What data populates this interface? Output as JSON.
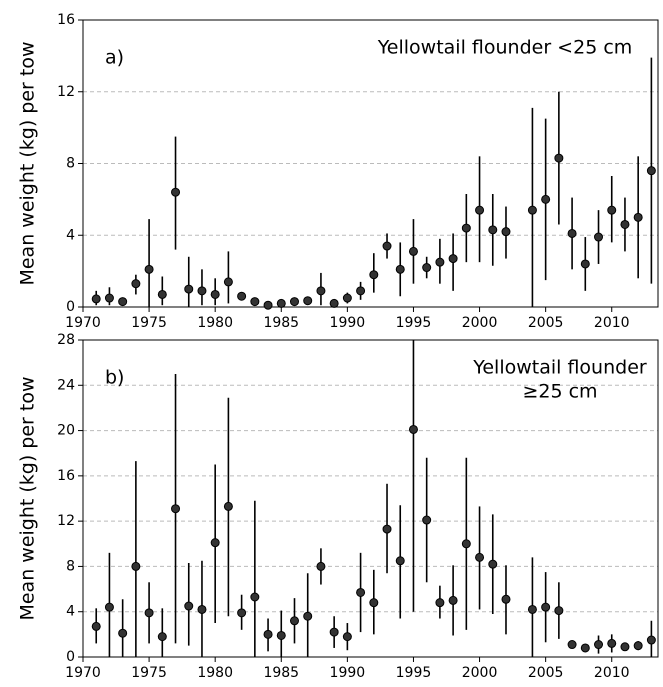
{
  "chart_data": [
    {
      "type": "scatter",
      "panel_label": "a)",
      "annotation": [
        "Yellowtail  flounder  <25 cm"
      ],
      "y_label": "Mean  weight (kg) per tow",
      "x": [
        1971,
        1972,
        1973,
        1974,
        1975,
        1976,
        1977,
        1978,
        1979,
        1980,
        1981,
        1982,
        1983,
        1984,
        1985,
        1986,
        1987,
        1988,
        1989,
        1990,
        1991,
        1992,
        1993,
        1994,
        1995,
        1996,
        1997,
        1998,
        1999,
        2000,
        2001,
        2002,
        2004,
        2005,
        2006,
        2007,
        2008,
        2009,
        2010,
        2011,
        2012,
        2013
      ],
      "series": [
        {
          "color": "#333333",
          "values": [
            0.45,
            0.5,
            0.3,
            1.3,
            2.1,
            0.7,
            6.4,
            1.0,
            0.9,
            0.7,
            1.4,
            0.6,
            0.3,
            0.1,
            0.2,
            0.3,
            0.35,
            0.9,
            0.2,
            0.5,
            0.9,
            1.8,
            3.4,
            2.1,
            3.1,
            2.2,
            2.5,
            2.7,
            4.4,
            5.4,
            4.3,
            4.2,
            5.4,
            6.0,
            8.3,
            4.1,
            2.4,
            3.9,
            5.4,
            4.6,
            5.0,
            7.6
          ],
          "lower": [
            0.1,
            0.1,
            0.1,
            0.7,
            0,
            0.1,
            3.2,
            0,
            0.1,
            0.1,
            0.2,
            0.4,
            0.2,
            0,
            0.1,
            0.2,
            0.2,
            0.1,
            0.1,
            0.2,
            0.4,
            0.8,
            2.7,
            0.6,
            1.3,
            1.6,
            1.3,
            0.9,
            2.5,
            2.5,
            2.3,
            2.7,
            0,
            1.5,
            4.6,
            2.1,
            0.9,
            2.4,
            3.6,
            3.1,
            1.6,
            1.3
          ],
          "upper": [
            0.9,
            1.1,
            0.5,
            1.8,
            4.9,
            1.7,
            9.5,
            2.8,
            2.1,
            1.6,
            3.1,
            0.8,
            0.4,
            0.2,
            0.3,
            0.4,
            0.5,
            1.9,
            0.3,
            0.8,
            1.4,
            3.0,
            4.1,
            3.6,
            4.9,
            2.8,
            3.8,
            4.1,
            6.3,
            8.4,
            6.3,
            5.6,
            11.1,
            10.5,
            12.0,
            6.1,
            3.9,
            5.4,
            7.3,
            6.1,
            8.4,
            13.9
          ]
        }
      ],
      "xlim": [
        1970,
        2013.5
      ],
      "xticks": [
        1970,
        1975,
        1980,
        1985,
        1990,
        1995,
        2000,
        2005,
        2010
      ],
      "ylim": [
        0,
        16
      ],
      "yticks": [
        0,
        4,
        8,
        12,
        16
      ],
      "grid": true
    },
    {
      "type": "scatter",
      "panel_label": "b)",
      "annotation": [
        "Yellowtail  flounder",
        "≥25 cm"
      ],
      "y_label": "Mean  weight (kg) per tow",
      "x": [
        1971,
        1972,
        1973,
        1974,
        1975,
        1976,
        1977,
        1978,
        1979,
        1980,
        1981,
        1982,
        1983,
        1984,
        1985,
        1986,
        1987,
        1988,
        1989,
        1990,
        1991,
        1992,
        1993,
        1994,
        1995,
        1996,
        1997,
        1998,
        1999,
        2000,
        2001,
        2002,
        2004,
        2005,
        2006,
        2007,
        2008,
        2009,
        2010,
        2011,
        2012,
        2013
      ],
      "series": [
        {
          "color": "#333333",
          "values": [
            2.7,
            4.4,
            2.1,
            8.0,
            3.9,
            1.8,
            13.1,
            4.5,
            4.2,
            10.1,
            13.3,
            3.9,
            5.3,
            2.0,
            1.9,
            3.2,
            3.6,
            8.0,
            2.2,
            1.8,
            5.7,
            4.8,
            11.3,
            8.5,
            20.1,
            12.1,
            4.8,
            5.0,
            10.0,
            8.8,
            8.2,
            5.1,
            4.2,
            4.4,
            4.1,
            1.1,
            0.8,
            1.1,
            1.2,
            0.9,
            1.0,
            1.5
          ],
          "lower": [
            1.2,
            0,
            0,
            0,
            1.2,
            0,
            1.2,
            1.0,
            0,
            3.0,
            3.6,
            2.4,
            0,
            0.5,
            0,
            1.2,
            0,
            6.4,
            0.8,
            0.6,
            2.2,
            2.0,
            7.4,
            3.4,
            4.0,
            6.6,
            3.4,
            1.9,
            2.4,
            4.2,
            3.8,
            2.0,
            0,
            1.3,
            1.6,
            0.8,
            0.5,
            0.3,
            0.4,
            0.6,
            0.6,
            0
          ],
          "upper": [
            4.3,
            9.2,
            5.1,
            17.3,
            6.6,
            4.3,
            25.0,
            8.3,
            8.5,
            17.0,
            22.9,
            5.5,
            13.8,
            3.4,
            4.1,
            5.2,
            7.4,
            9.6,
            3.6,
            3.0,
            9.2,
            7.7,
            15.3,
            13.4,
            28,
            17.6,
            6.3,
            8.1,
            17.6,
            13.3,
            12.6,
            8.1,
            8.8,
            7.5,
            6.6,
            1.4,
            1.1,
            1.9,
            2.0,
            1.2,
            1.4,
            3.2
          ]
        }
      ],
      "xlim": [
        1970,
        2013.5
      ],
      "xticks": [
        1970,
        1975,
        1980,
        1985,
        1990,
        1995,
        2000,
        2005,
        2010
      ],
      "ylim": [
        0,
        28
      ],
      "yticks": [
        0,
        4,
        8,
        12,
        16,
        20,
        24,
        28
      ],
      "grid": true
    }
  ]
}
